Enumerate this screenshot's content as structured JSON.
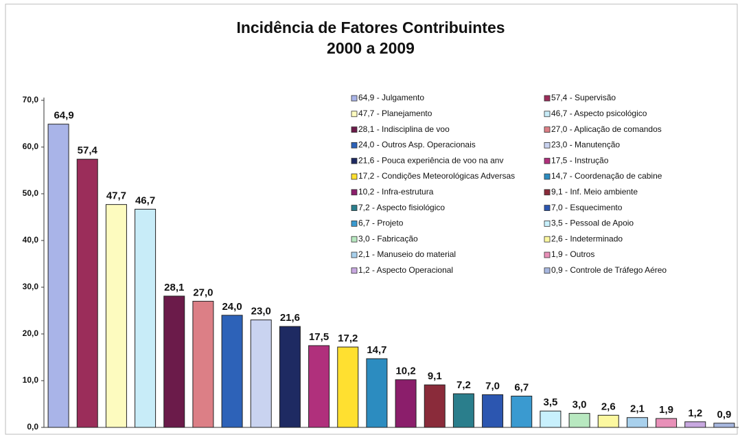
{
  "chart_data": {
    "type": "bar",
    "title": "Incidência de Fatores Contribuintes",
    "subtitle": "2000 a 2009",
    "categories": [
      "64,9 - Julgamento",
      "57,4 - Supervisão",
      "47,7 - Planejamento",
      "46,7 - Aspecto psicológico",
      "28,1 - Indisciplina de voo",
      "27,0 - Aplicação de comandos",
      "24,0 - Outros Asp. Operacionais",
      "23,0 - Manutenção",
      "21,6 - Pouca experiência de voo na anv",
      "17,5 - Instrução",
      "17,2 - Condições Meteorológicas Adversas",
      "14,7 - Coordenação de cabine",
      "10,2 - Infra-estrutura",
      "9,1 - Inf. Meio ambiente",
      "7,2 - Aspecto fisiológico",
      "7,0 - Esquecimento",
      "6,7 - Projeto",
      "3,5 - Pessoal de Apoio",
      "3,0 - Fabricação",
      "2,6 - Indeterminado",
      "2,1 - Manuseio do material",
      "1,9 - Outros",
      "1,2 - Aspecto Operacional",
      "0,9 - Controle de Tráfego Aéreo"
    ],
    "values": [
      64.9,
      57.4,
      47.7,
      46.7,
      28.1,
      27.0,
      24.0,
      23.0,
      21.6,
      17.5,
      17.2,
      14.7,
      10.2,
      9.1,
      7.2,
      7.0,
      6.7,
      3.5,
      3.0,
      2.6,
      2.1,
      1.9,
      1.2,
      0.9
    ],
    "value_labels": [
      "64,9",
      "57,4",
      "47,7",
      "46,7",
      "28,1",
      "27,0",
      "24,0",
      "23,0",
      "21,6",
      "17,5",
      "17,2",
      "14,7",
      "10,2",
      "9,1",
      "7,2",
      "7,0",
      "6,7",
      "3,5",
      "3,0",
      "2,6",
      "2,1",
      "1,9",
      "1,2",
      "0,9"
    ],
    "colors": [
      "#a9b4e8",
      "#9b2d5a",
      "#fdfbbf",
      "#c8ecf8",
      "#6b1b4a",
      "#dc7f86",
      "#2d62b8",
      "#c9d3f0",
      "#1e2a62",
      "#b0307c",
      "#ffe030",
      "#2c8cc0",
      "#8b1e6b",
      "#8a2b3a",
      "#2a7e8c",
      "#2c56b0",
      "#3a9ad0",
      "#c8f0fc",
      "#b8e8c0",
      "#fcf8a0",
      "#a8d0ec",
      "#e890b8",
      "#c8a8e0",
      "#a8b8e0"
    ],
    "ylim": [
      0,
      70
    ],
    "yticks": [
      {
        "value": 0,
        "label": "0,0"
      },
      {
        "value": 10,
        "label": "10,0"
      },
      {
        "value": 20,
        "label": "20,0"
      },
      {
        "value": 30,
        "label": "30,0"
      },
      {
        "value": 40,
        "label": "40,0"
      },
      {
        "value": 50,
        "label": "50,0"
      },
      {
        "value": 60,
        "label": "60,0"
      },
      {
        "value": 70,
        "label": "70,0"
      }
    ],
    "legend": "top-right"
  }
}
